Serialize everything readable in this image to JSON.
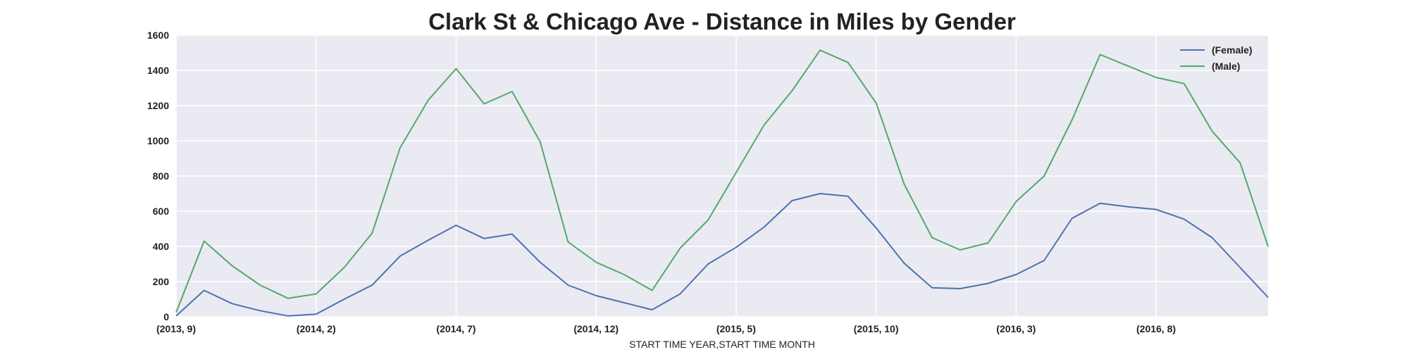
{
  "chart_data": {
    "type": "line",
    "title": "Clark St & Chicago Ave - Distance in Miles by Gender",
    "xlabel": "START TIME YEAR,START TIME MONTH",
    "ylabel": "",
    "ylim": [
      0,
      1600
    ],
    "yticks": [
      0,
      200,
      400,
      600,
      800,
      1000,
      1200,
      1400,
      1600
    ],
    "x": [
      "(2013, 9)",
      "(2013, 10)",
      "(2013, 11)",
      "(2013, 12)",
      "(2014, 1)",
      "(2014, 2)",
      "(2014, 3)",
      "(2014, 4)",
      "(2014, 5)",
      "(2014, 6)",
      "(2014, 7)",
      "(2014, 8)",
      "(2014, 9)",
      "(2014, 10)",
      "(2014, 11)",
      "(2014, 12)",
      "(2015, 1)",
      "(2015, 2)",
      "(2015, 3)",
      "(2015, 4)",
      "(2015, 5)",
      "(2015, 6)",
      "(2015, 7)",
      "(2015, 8)",
      "(2015, 9)",
      "(2015, 10)",
      "(2015, 11)",
      "(2015, 12)",
      "(2016, 1)",
      "(2016, 2)",
      "(2016, 3)",
      "(2016, 4)",
      "(2016, 5)",
      "(2016, 6)",
      "(2016, 7)",
      "(2016, 8)",
      "(2016, 9)",
      "(2016, 10)",
      "(2016, 11)",
      "(2016, 12)"
    ],
    "xticks": [
      "(2013, 9)",
      "(2014, 2)",
      "(2014, 7)",
      "(2014, 12)",
      "(2015, 5)",
      "(2015, 10)",
      "(2016, 3)",
      "(2016, 8)"
    ],
    "grid": true,
    "legend_position": "top-right",
    "series": [
      {
        "name": "(Female)",
        "color": "#4c72b0",
        "values": [
          5,
          150,
          75,
          35,
          5,
          15,
          100,
          180,
          345,
          435,
          520,
          445,
          470,
          310,
          180,
          120,
          80,
          40,
          130,
          300,
          395,
          510,
          660,
          700,
          685,
          505,
          305,
          165,
          160,
          190,
          240,
          320,
          560,
          645,
          625,
          610,
          555,
          450,
          280,
          110
        ]
      },
      {
        "name": "(Male)",
        "color": "#55a868",
        "values": [
          25,
          430,
          290,
          180,
          105,
          130,
          280,
          475,
          960,
          1230,
          1410,
          1210,
          1280,
          995,
          425,
          310,
          240,
          150,
          390,
          550,
          820,
          1090,
          1285,
          1515,
          1445,
          1215,
          755,
          450,
          380,
          420,
          655,
          800,
          1120,
          1490,
          1425,
          1360,
          1325,
          1055,
          875,
          400
        ]
      }
    ]
  }
}
